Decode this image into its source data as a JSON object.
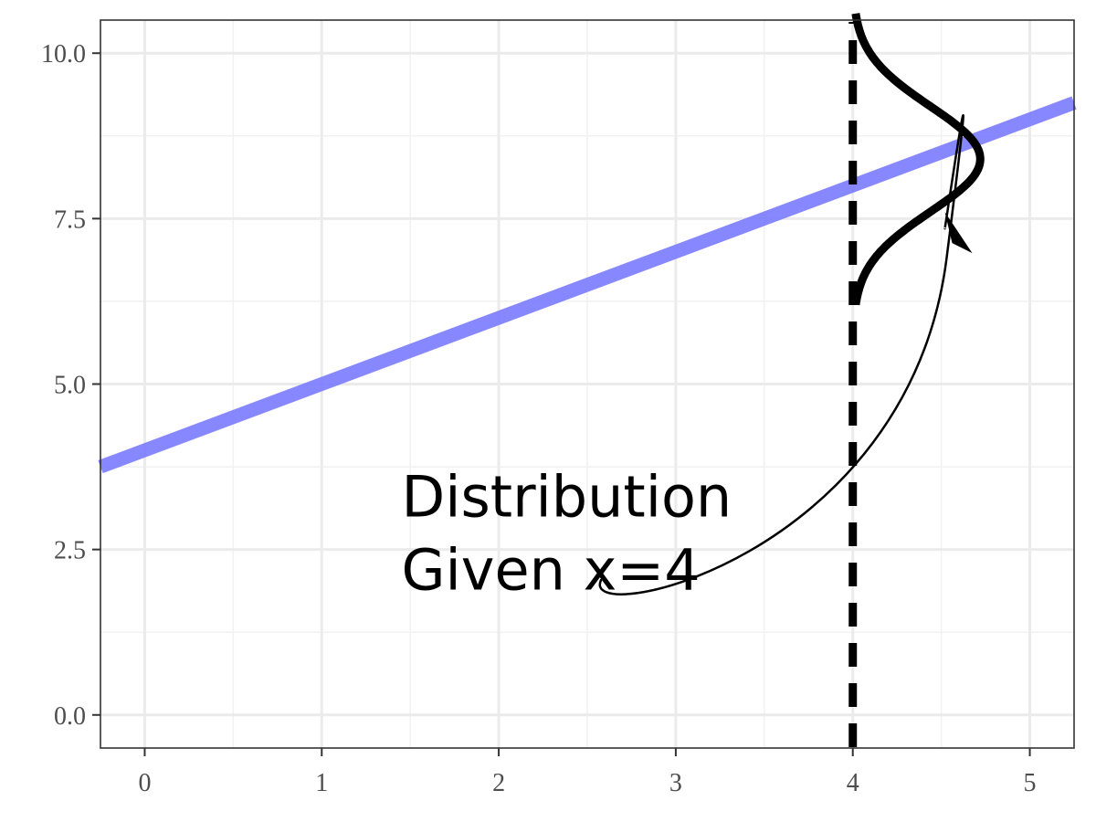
{
  "chart_data": {
    "type": "line",
    "title": "",
    "xlabel": "",
    "ylabel": "",
    "xlim": [
      -0.25,
      5.25
    ],
    "ylim": [
      -0.5,
      10.5
    ],
    "grid": true,
    "x_major_ticks": [
      0,
      1,
      2,
      3,
      4,
      5
    ],
    "x_tick_labels": [
      "0",
      "1",
      "2",
      "3",
      "4",
      "5"
    ],
    "x_minor_ticks": [
      0.5,
      1.5,
      2.5,
      3.5,
      4.5
    ],
    "y_major_ticks": [
      0,
      2.5,
      5,
      7.5,
      10
    ],
    "y_tick_labels": [
      "0.0",
      "2.5",
      "5.0",
      "7.5",
      "10.0"
    ],
    "y_minor_ticks": [
      1.25,
      3.75,
      6.25,
      8.75
    ],
    "series": [
      {
        "kind": "regression-line",
        "x": [
          -0.25,
          5.25
        ],
        "y": [
          3.75,
          9.25
        ],
        "color": "#7a7aff",
        "opacity": 0.9
      },
      {
        "kind": "vertical-dashed-line",
        "x": 4,
        "color": "#000000"
      },
      {
        "kind": "conditional-density",
        "at_x": 4,
        "mean": 8.4,
        "sd": 0.8,
        "y_range": [
          6.2,
          10.6
        ],
        "peak_x": 4.72,
        "color": "#000000"
      }
    ],
    "annotations": [
      {
        "text_lines": [
          "Distribution",
          "Given x=4"
        ],
        "text_x": 1.45,
        "text_y": 3.0,
        "arrow_from": [
          2.58,
          2.05
        ],
        "arrow_to": [
          4.52,
          7.6
        ]
      }
    ]
  }
}
